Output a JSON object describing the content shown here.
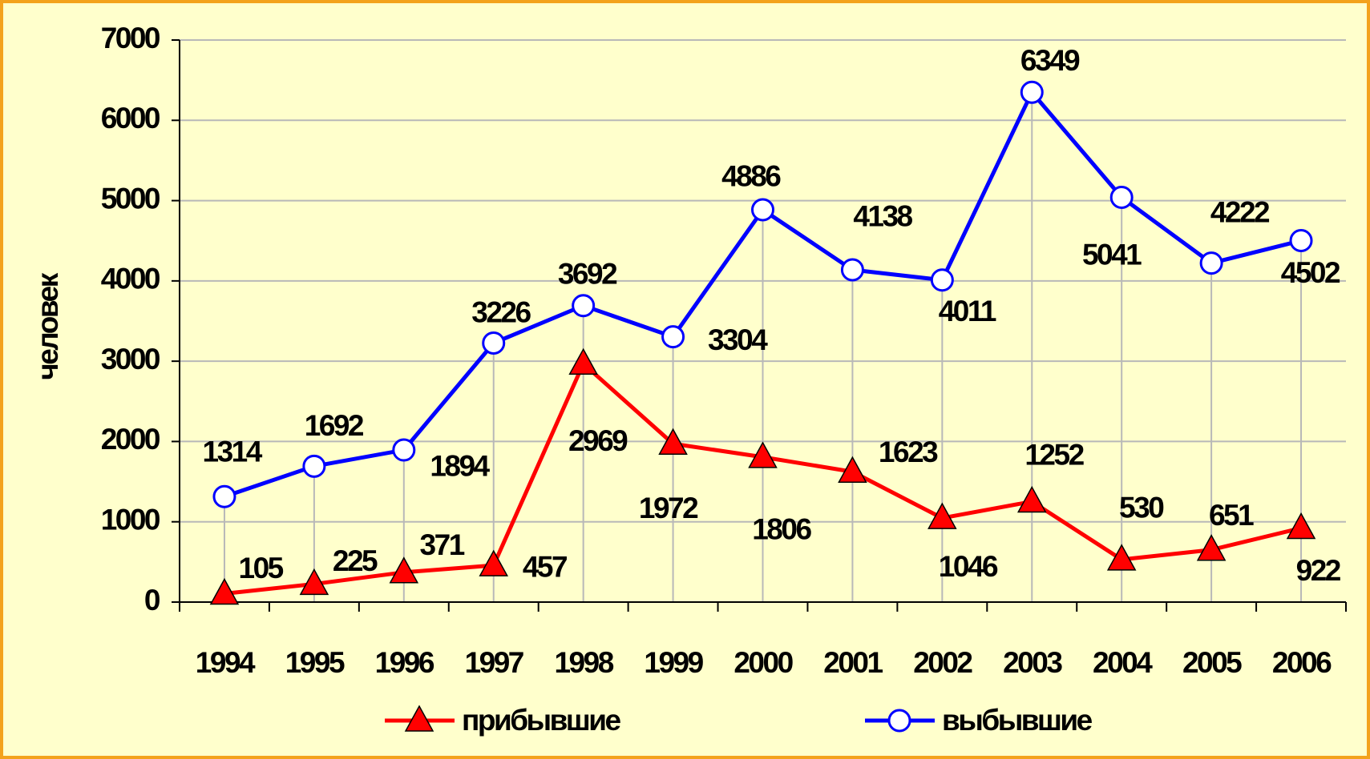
{
  "chart_data": {
    "type": "line",
    "categories": [
      "1994",
      "1995",
      "1996",
      "1997",
      "1998",
      "1999",
      "2000",
      "2001",
      "2002",
      "2003",
      "2004",
      "2005",
      "2006"
    ],
    "series": [
      {
        "name": "прибывшие",
        "color": "#ff0000",
        "marker": "triangle",
        "values": [
          105,
          225,
          371,
          457,
          2969,
          1972,
          1806,
          1623,
          1046,
          1252,
          530,
          651,
          922
        ]
      },
      {
        "name": "выбывшие",
        "color": "#0000ff",
        "marker": "circle",
        "values": [
          1314,
          1692,
          1894,
          3226,
          3692,
          3304,
          4886,
          4138,
          4011,
          6349,
          5041,
          4222,
          4502
        ]
      }
    ],
    "ylabel": "человек",
    "ylim": [
      0,
      7000
    ],
    "yticks": [
      0,
      1000,
      2000,
      3000,
      4000,
      5000,
      6000,
      7000
    ],
    "grid": true,
    "legend": "bottom"
  }
}
